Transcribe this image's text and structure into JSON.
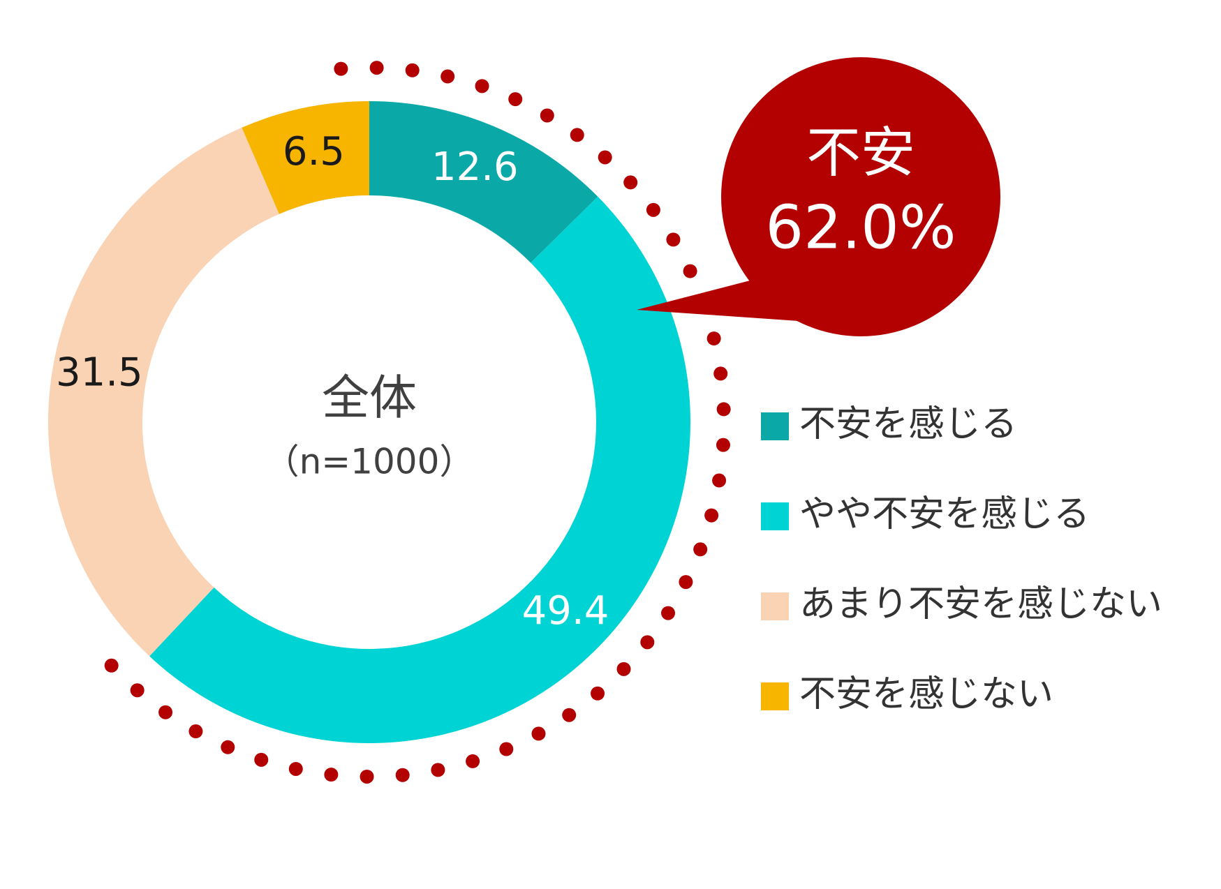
{
  "chart_data": {
    "type": "donut",
    "categories": [
      "不安を感じる",
      "やや不安を感じる",
      "あまり不安を感じない",
      "不安を感じない"
    ],
    "values": [
      12.6,
      49.4,
      31.5,
      6.5
    ],
    "colors": [
      "#0aa9a8",
      "#00d3d3",
      "#fad3b5",
      "#f7b500"
    ],
    "center_label": [
      "全体",
      "（n=1000）"
    ],
    "callout": {
      "text": "不安",
      "value": 62.0,
      "value_label": "62.0%",
      "color": "#b30000"
    }
  }
}
